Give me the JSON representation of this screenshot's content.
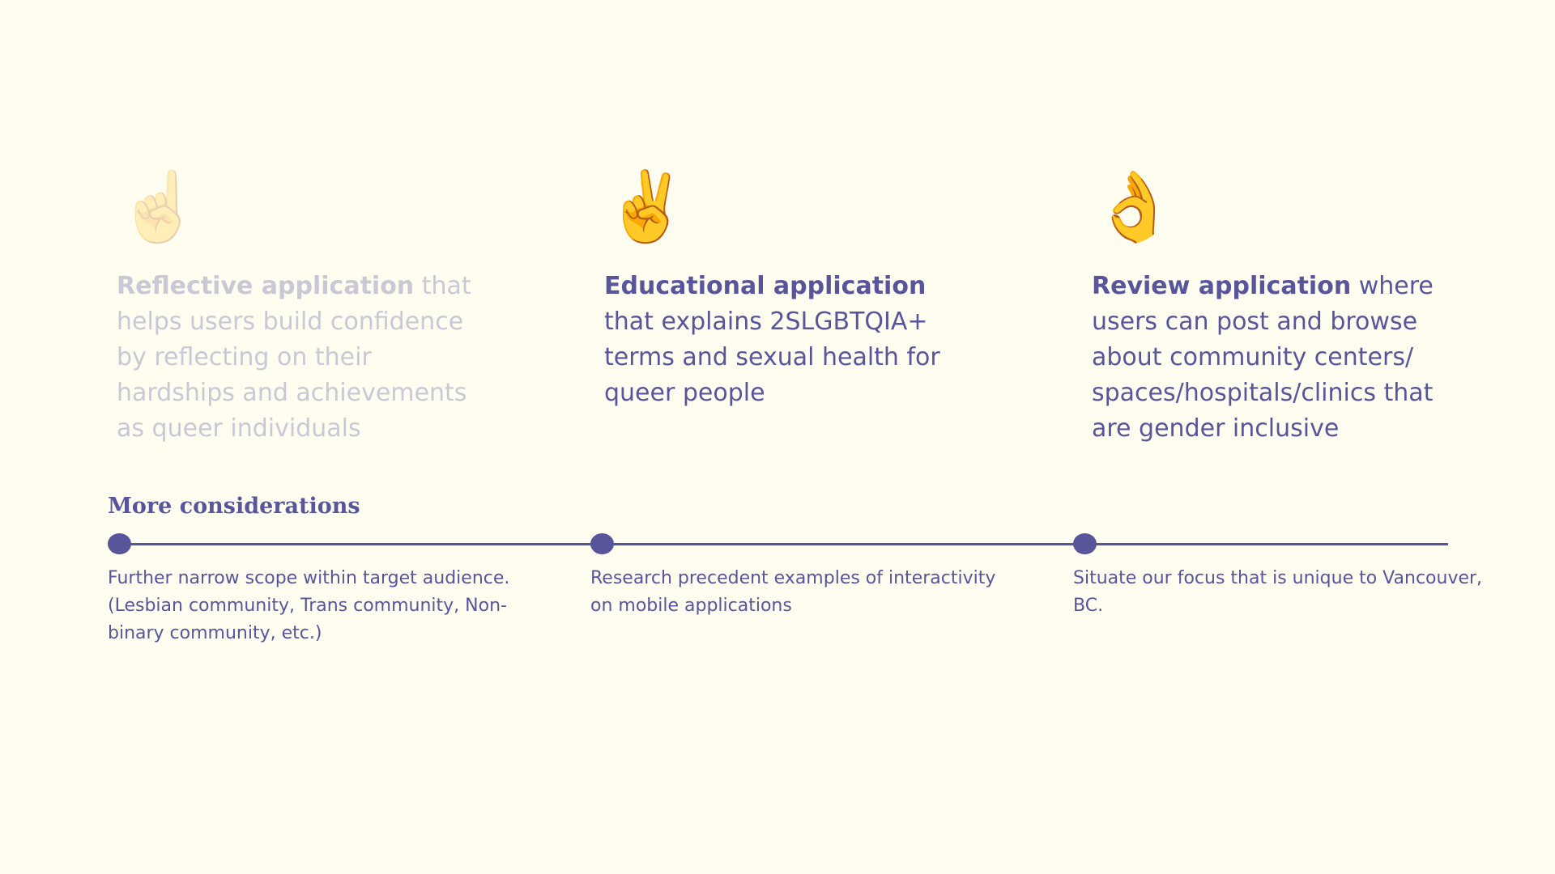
{
  "cards": [
    {
      "emoji": "☝️",
      "icon_name": "index-pointing-up-icon",
      "strong": "Reflective application",
      "text": " that helps users build confidence by reflecting on their hardships and achievements as queer individuals",
      "state": "faded"
    },
    {
      "emoji": "✌️",
      "icon_name": "victory-hand-icon",
      "strong": "Educational application",
      "text": " that explains 2SLGBTQIA+ terms and sexual health for queer people",
      "state": "active"
    },
    {
      "emoji": "👌",
      "icon_name": "ok-hand-icon",
      "strong": "Review application",
      "text": " where users can post and browse about community centers/ spaces/hospitals/clinics that are gender inclusive",
      "state": "active"
    }
  ],
  "considerations": {
    "title": "More considerations",
    "items": [
      "Further narrow scope within target audience. (Lesbian community, Trans community, Non-binary community, etc.)",
      "Research precedent examples of interactivity on mobile applications",
      "Situate our focus that is unique to Vancouver, BC."
    ]
  },
  "colors": {
    "background": "#FEFDF0",
    "accent": "#58559A",
    "faded_text": "#CBC8D6"
  }
}
